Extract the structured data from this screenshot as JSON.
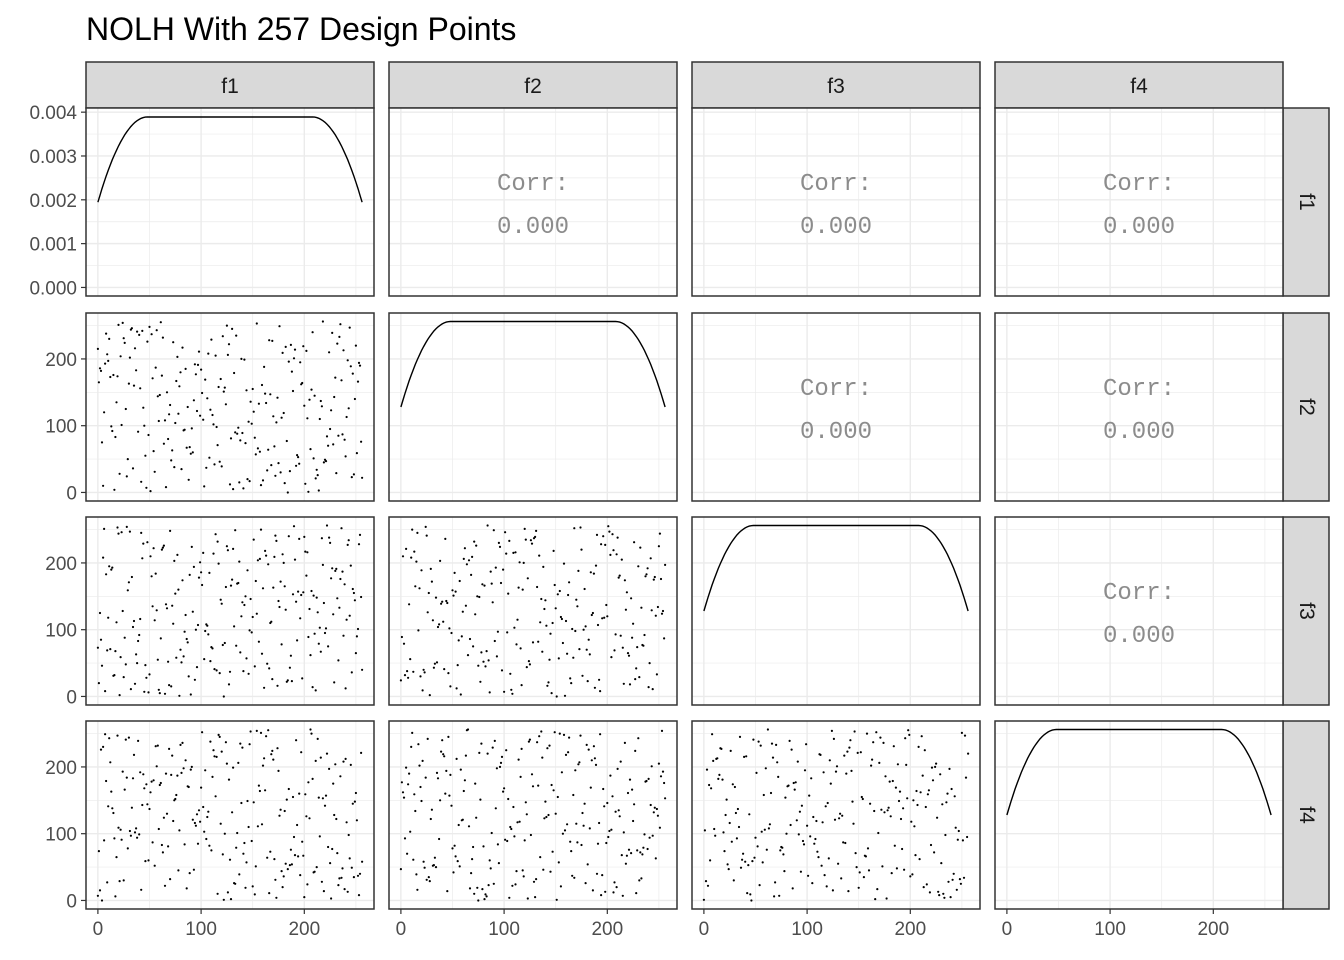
{
  "title": "NOLH With 257 Design Points",
  "variables": [
    "f1",
    "f2",
    "f3",
    "f4"
  ],
  "colors": {
    "strip": "#d9d9d9",
    "grid": "#ebebeb",
    "border": "#333333",
    "corr_text": "#8c8c8c",
    "points": "#000000"
  },
  "chart_data": {
    "type": "scatter",
    "layout": "scatterplot-matrix",
    "design_points": 257,
    "title": "NOLH With 257 Design Points",
    "x_range": [
      0,
      256
    ],
    "x_ticks": [
      0,
      100,
      200
    ],
    "x_tick_labels": [
      "0",
      "100",
      "200"
    ],
    "diagonal": {
      "type": "density",
      "y_range": [
        0,
        0.004
      ],
      "y_ticks": [
        0,
        0.001,
        0.002,
        0.003,
        0.004
      ],
      "y_tick_labels": [
        "0.000",
        "0.001",
        "0.002",
        "0.003",
        "0.004"
      ],
      "plateau_density": 0.00389,
      "edge_density": 0.00195
    },
    "off_diagonal_y_ticks": [
      0,
      100,
      200
    ],
    "off_diagonal_y_tick_labels": [
      "0",
      "100",
      "200"
    ],
    "correlations": [
      {
        "row": "f1",
        "col": "f2",
        "label": "Corr:",
        "value": "0.000"
      },
      {
        "row": "f1",
        "col": "f3",
        "label": "Corr:",
        "value": "0.000"
      },
      {
        "row": "f1",
        "col": "f4",
        "label": "Corr:",
        "value": "0.000"
      },
      {
        "row": "f2",
        "col": "f3",
        "label": "Corr:",
        "value": "0.000"
      },
      {
        "row": "f2",
        "col": "f4",
        "label": "Corr:",
        "value": "0.000"
      },
      {
        "row": "f3",
        "col": "f4",
        "label": "Corr:",
        "value": "0.000"
      }
    ],
    "scatter_panels": [
      {
        "x": "f1",
        "y": "f2"
      },
      {
        "x": "f1",
        "y": "f3"
      },
      {
        "x": "f2",
        "y": "f3"
      },
      {
        "x": "f1",
        "y": "f4"
      },
      {
        "x": "f2",
        "y": "f4"
      },
      {
        "x": "f3",
        "y": "f4"
      }
    ],
    "grid": true,
    "legend": "none"
  }
}
